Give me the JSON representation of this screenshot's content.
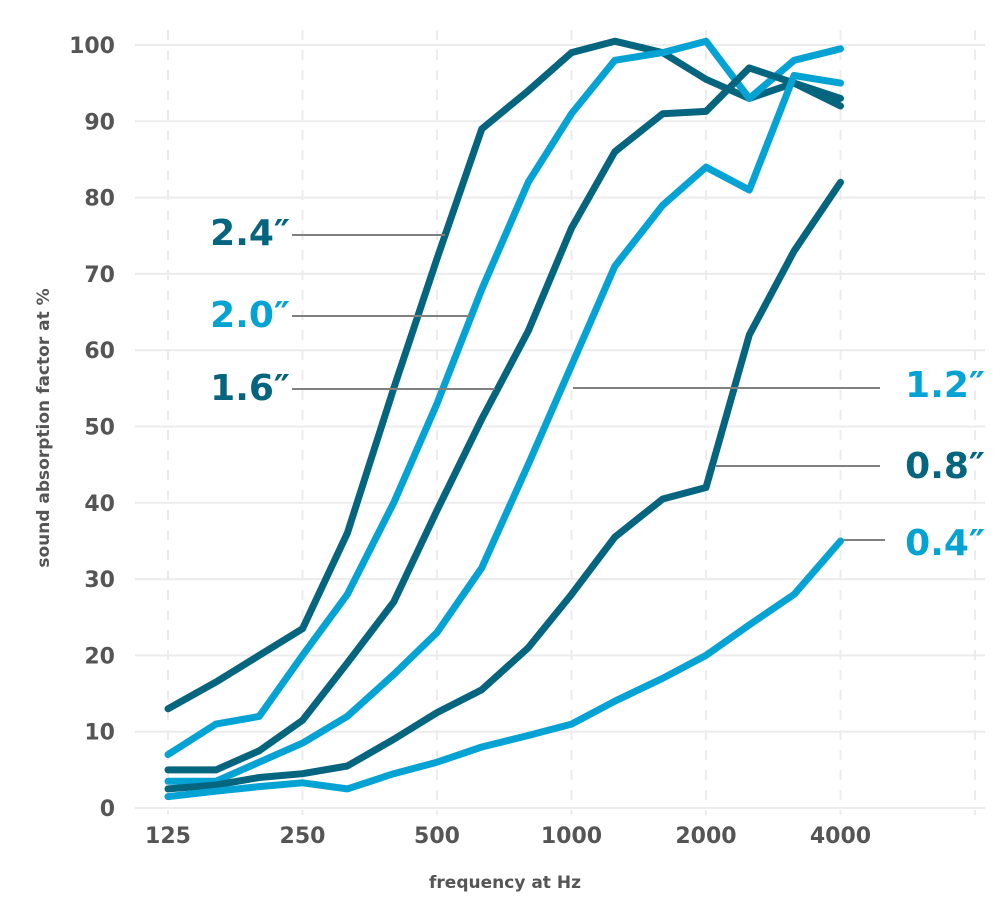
{
  "chart_data": {
    "type": "line",
    "title": "",
    "xlabel": "frequency at Hz",
    "ylabel": "sound absorption factor at %",
    "x_scale": "log",
    "xticks": [
      "125",
      "250",
      "500",
      "1000",
      "2000",
      "4000"
    ],
    "yticks": [
      "0",
      "10",
      "20",
      "30",
      "40",
      "50",
      "60",
      "70",
      "80",
      "90",
      "100"
    ],
    "ylim": [
      0,
      100
    ],
    "grid": true,
    "x": [
      125,
      160,
      200,
      250,
      315,
      400,
      500,
      630,
      800,
      1000,
      1250,
      1600,
      2000,
      2500,
      3150,
      4000
    ],
    "colors": {
      "dark": "#05657f",
      "light": "#05a3d4",
      "leader": "#808080",
      "grid": "#ececec"
    },
    "series": [
      {
        "name": "2.4″",
        "color": "dark",
        "values": [
          13,
          16.5,
          20,
          23.5,
          36,
          55,
          72,
          89,
          94,
          99,
          100.5,
          99,
          95.5,
          93,
          95,
          92
        ]
      },
      {
        "name": "2.0″",
        "color": "light",
        "values": [
          7,
          11,
          12,
          20,
          28,
          40,
          53,
          68,
          82,
          91,
          98,
          99,
          100.5,
          93,
          98,
          99.5
        ]
      },
      {
        "name": "1.6″",
        "color": "dark",
        "values": [
          5,
          5,
          7.5,
          11.5,
          19,
          27,
          39,
          51,
          62.5,
          76,
          86,
          91,
          91.3,
          97,
          95,
          93
        ]
      },
      {
        "name": "1.2″",
        "color": "light",
        "values": [
          3.5,
          3.5,
          6,
          8.5,
          12,
          17.5,
          23,
          31.5,
          45,
          58,
          71,
          79,
          84,
          81,
          96,
          95
        ]
      },
      {
        "name": "0.8″",
        "color": "dark",
        "values": [
          2.5,
          3,
          4,
          4.5,
          5.5,
          9,
          12.5,
          15.5,
          21,
          28,
          35.5,
          40.5,
          42,
          62,
          73,
          82
        ]
      },
      {
        "name": "0.4″",
        "color": "light",
        "values": [
          1.5,
          2.2,
          2.8,
          3.3,
          2.5,
          4.5,
          6,
          8,
          9.5,
          11,
          14,
          17,
          20,
          24,
          28,
          35
        ]
      }
    ]
  }
}
